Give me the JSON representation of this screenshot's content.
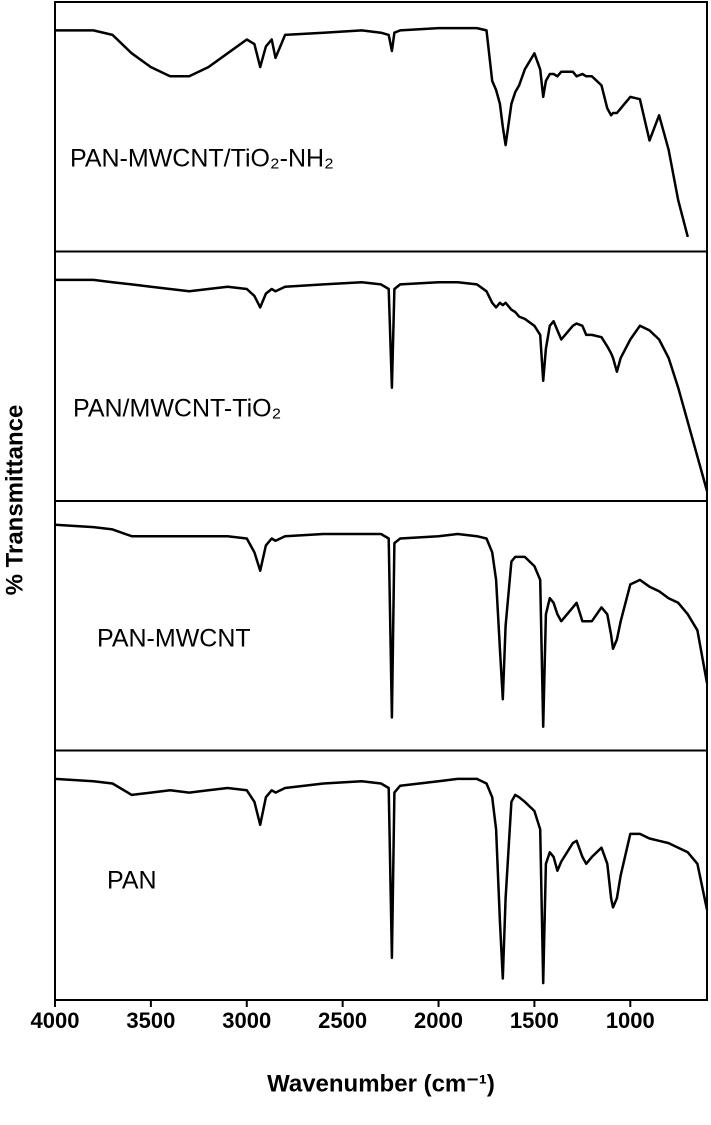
{
  "chart_data": {
    "type": "line",
    "layout": "stacked",
    "xlabel": "Wavenumber (cm⁻¹)",
    "ylabel": "% Transmittance",
    "xlim": [
      4000,
      600
    ],
    "ylim": [
      0,
      100
    ],
    "xticks": [
      4000,
      3500,
      3000,
      2500,
      2000,
      1500,
      1000
    ],
    "x": [
      4000,
      3800,
      3700,
      3600,
      3500,
      3400,
      3300,
      3200,
      3100,
      3000,
      2960,
      2930,
      2900,
      2870,
      2850,
      2800,
      2600,
      2400,
      2300,
      2260,
      2243,
      2230,
      2200,
      2000,
      1900,
      1800,
      1750,
      1720,
      1700,
      1680,
      1665,
      1650,
      1620,
      1600,
      1580,
      1550,
      1500,
      1470,
      1454,
      1440,
      1420,
      1400,
      1380,
      1360,
      1300,
      1280,
      1250,
      1230,
      1200,
      1150,
      1120,
      1100,
      1090,
      1070,
      1050,
      1000,
      950,
      900,
      850,
      800,
      750,
      700,
      650,
      600
    ],
    "series": [
      {
        "name": "PAN-MWCNT/TiO₂-NH₂",
        "color": "#000000",
        "values": [
          92,
          92,
          90,
          82,
          76,
          72,
          72,
          76,
          82,
          88,
          86,
          76,
          85,
          88,
          80,
          90,
          91,
          92,
          91,
          90,
          83,
          91,
          92,
          93,
          93,
          93,
          92,
          70,
          66,
          60,
          50,
          42,
          60,
          65,
          68,
          75,
          82,
          75,
          63,
          70,
          73,
          73,
          72,
          74,
          74,
          72,
          73,
          72,
          72,
          68,
          58,
          55,
          56,
          56,
          58,
          63,
          62,
          44,
          55,
          40,
          18,
          2,
          null,
          null
        ]
      },
      {
        "name": "PAN/MWCNT-TiO₂",
        "color": "#000000",
        "values": [
          92,
          92,
          91,
          90,
          89,
          88,
          87,
          88,
          89,
          88,
          85,
          80,
          86,
          88,
          87,
          89,
          90,
          91,
          90,
          88,
          45,
          88,
          90,
          91,
          91,
          90,
          87,
          82,
          80,
          82,
          81,
          82,
          79,
          78,
          76,
          75,
          72,
          68,
          48,
          62,
          72,
          74,
          70,
          66,
          72,
          73,
          72,
          68,
          68,
          67,
          63,
          60,
          58,
          52,
          58,
          66,
          72,
          70,
          66,
          58,
          45,
          30,
          15,
          0
        ]
      },
      {
        "name": "PAN-MWCNT",
        "color": "#000000",
        "values": [
          94,
          93,
          92,
          89,
          89,
          89,
          89,
          89,
          89,
          88,
          82,
          74,
          85,
          88,
          87,
          89,
          90,
          90,
          90,
          88,
          10,
          86,
          88,
          89,
          90,
          89,
          88,
          82,
          70,
          40,
          18,
          50,
          78,
          80,
          80,
          80,
          76,
          70,
          6,
          55,
          62,
          60,
          55,
          52,
          58,
          60,
          52,
          52,
          52,
          58,
          55,
          46,
          40,
          44,
          52,
          68,
          70,
          67,
          65,
          62,
          60,
          55,
          48,
          25
        ]
      },
      {
        "name": "PAN",
        "color": "#000000",
        "values": [
          92,
          91,
          90,
          85,
          86,
          87,
          86,
          87,
          88,
          87,
          82,
          72,
          84,
          87,
          86,
          88,
          90,
          91,
          90,
          88,
          14,
          86,
          89,
          91,
          92,
          92,
          90,
          84,
          70,
          30,
          5,
          40,
          82,
          85,
          84,
          82,
          78,
          70,
          3,
          55,
          60,
          58,
          52,
          56,
          64,
          65,
          58,
          55,
          58,
          62,
          55,
          40,
          36,
          40,
          50,
          68,
          68,
          66,
          65,
          64,
          62,
          60,
          55,
          35
        ]
      }
    ]
  }
}
